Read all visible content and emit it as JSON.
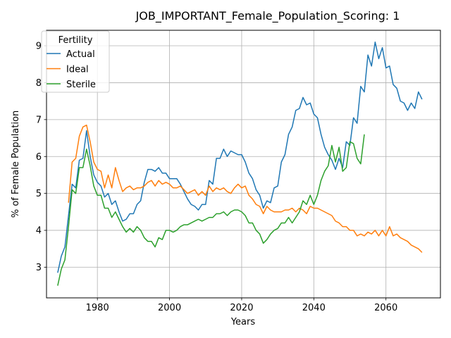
{
  "chart_data": {
    "type": "line",
    "title": "JOB_IMPORTANT_Female_Population_Scoring: 1",
    "xlabel": "Years",
    "ylabel": "% of Female Population",
    "xlim": [
      1965.9,
      2075.1
    ],
    "ylim": [
      2.17,
      9.42
    ],
    "xticks": [
      1980,
      2000,
      2020,
      2040,
      2060
    ],
    "yticks": [
      3,
      4,
      5,
      6,
      7,
      8,
      9
    ],
    "grid": true,
    "legend": {
      "title": "Fertility",
      "placement": "top-left"
    },
    "series": [
      {
        "name": "Actual",
        "color": "#1f77b4",
        "x": [
          1969,
          1970,
          1971,
          1972,
          1973,
          1974,
          1975,
          1976,
          1977,
          1978,
          1979,
          1980,
          1981,
          1982,
          1983,
          1984,
          1985,
          1986,
          1987,
          1988,
          1989,
          1990,
          1991,
          1992,
          1993,
          1994,
          1995,
          1996,
          1997,
          1998,
          1999,
          2000,
          2001,
          2002,
          2003,
          2004,
          2005,
          2006,
          2007,
          2008,
          2009,
          2010,
          2011,
          2012,
          2013,
          2014,
          2015,
          2016,
          2017,
          2018,
          2019,
          2020,
          2021,
          2022,
          2023,
          2024,
          2025,
          2026,
          2027,
          2028,
          2029,
          2030,
          2031,
          2032,
          2033,
          2034,
          2035,
          2036,
          2037,
          2038,
          2039,
          2040,
          2041,
          2042,
          2043,
          2044,
          2045,
          2046,
          2047,
          2048,
          2049,
          2050,
          2051,
          2052,
          2053,
          2054,
          2055,
          2056,
          2057,
          2058,
          2059,
          2060,
          2061,
          2062,
          2063,
          2064,
          2065,
          2066,
          2067,
          2068,
          2069,
          2070
        ],
        "values": [
          2.85,
          3.3,
          3.55,
          4.4,
          5.25,
          5.15,
          5.9,
          5.95,
          6.7,
          6.0,
          5.5,
          5.3,
          5.2,
          4.9,
          5.0,
          4.7,
          4.8,
          4.5,
          4.25,
          4.3,
          4.45,
          4.45,
          4.7,
          4.8,
          5.3,
          5.65,
          5.65,
          5.6,
          5.7,
          5.55,
          5.55,
          5.4,
          5.4,
          5.4,
          5.25,
          5.05,
          4.85,
          4.7,
          4.65,
          4.55,
          4.7,
          4.7,
          5.35,
          5.25,
          5.95,
          5.95,
          6.2,
          6.0,
          6.15,
          6.1,
          6.05,
          6.05,
          5.85,
          5.55,
          5.4,
          5.1,
          4.95,
          4.6,
          4.8,
          4.75,
          5.15,
          5.2,
          5.85,
          6.05,
          6.6,
          6.8,
          7.25,
          7.3,
          7.6,
          7.4,
          7.45,
          7.15,
          7.05,
          6.6,
          6.25,
          6.05,
          5.9,
          5.65,
          5.95,
          5.7,
          6.4,
          6.3,
          7.05,
          6.9,
          7.9,
          7.75,
          8.75,
          8.45,
          9.1,
          8.65,
          8.95,
          8.4,
          8.45,
          7.95,
          7.85,
          7.5,
          7.45,
          7.25,
          7.45,
          7.3,
          7.75,
          7.55
        ]
      },
      {
        "name": "Ideal",
        "color": "#ff7f0e",
        "x": [
          1972,
          1973,
          1974,
          1975,
          1976,
          1977,
          1978,
          1979,
          1980,
          1981,
          1982,
          1983,
          1984,
          1985,
          1986,
          1987,
          1988,
          1989,
          1990,
          1991,
          1992,
          1993,
          1994,
          1995,
          1996,
          1997,
          1998,
          1999,
          2000,
          2001,
          2002,
          2003,
          2004,
          2005,
          2006,
          2007,
          2008,
          2009,
          2010,
          2011,
          2012,
          2013,
          2014,
          2015,
          2016,
          2017,
          2018,
          2019,
          2020,
          2021,
          2022,
          2023,
          2024,
          2025,
          2026,
          2027,
          2028,
          2029,
          2030,
          2031,
          2032,
          2033,
          2034,
          2035,
          2036,
          2037,
          2038,
          2039,
          2040,
          2041,
          2042,
          2043,
          2044,
          2045,
          2046,
          2047,
          2048,
          2049,
          2050,
          2051,
          2052,
          2053,
          2054,
          2055,
          2056,
          2057,
          2058,
          2059,
          2060,
          2061,
          2062,
          2063,
          2064,
          2065,
          2066,
          2067,
          2068,
          2069,
          2070
        ],
        "values": [
          4.75,
          5.85,
          5.95,
          6.55,
          6.8,
          6.85,
          6.4,
          5.85,
          5.65,
          5.6,
          5.15,
          5.5,
          5.15,
          5.7,
          5.35,
          5.05,
          5.15,
          5.2,
          5.1,
          5.15,
          5.15,
          5.2,
          5.3,
          5.35,
          5.2,
          5.35,
          5.25,
          5.3,
          5.25,
          5.15,
          5.15,
          5.2,
          5.1,
          5.0,
          5.05,
          5.1,
          4.95,
          5.05,
          4.95,
          5.2,
          5.05,
          5.15,
          5.1,
          5.15,
          5.05,
          5.0,
          5.15,
          5.25,
          5.15,
          5.2,
          4.95,
          4.85,
          4.7,
          4.65,
          4.45,
          4.65,
          4.55,
          4.5,
          4.5,
          4.5,
          4.55,
          4.55,
          4.6,
          4.5,
          4.6,
          4.55,
          4.45,
          4.65,
          4.6,
          4.6,
          4.55,
          4.5,
          4.45,
          4.4,
          4.25,
          4.2,
          4.1,
          4.1,
          4.0,
          4.0,
          3.85,
          3.9,
          3.85,
          3.95,
          3.9,
          4.0,
          3.85,
          4.0,
          3.85,
          4.1,
          3.85,
          3.9,
          3.8,
          3.75,
          3.7,
          3.6,
          3.55,
          3.5,
          3.4
        ]
      },
      {
        "name": "Sterile",
        "color": "#2ca02c",
        "x": [
          1969,
          1970,
          1971,
          1972,
          1973,
          1974,
          1975,
          1976,
          1977,
          1978,
          1979,
          1980,
          1981,
          1982,
          1983,
          1984,
          1985,
          1986,
          1987,
          1988,
          1989,
          1990,
          1991,
          1992,
          1993,
          1994,
          1995,
          1996,
          1997,
          1998,
          1999,
          2000,
          2001,
          2002,
          2003,
          2004,
          2005,
          2006,
          2007,
          2008,
          2009,
          2010,
          2011,
          2012,
          2013,
          2014,
          2015,
          2016,
          2017,
          2018,
          2019,
          2020,
          2021,
          2022,
          2023,
          2024,
          2025,
          2026,
          2027,
          2028,
          2029,
          2030,
          2031,
          2032,
          2033,
          2034,
          2035,
          2036,
          2037,
          2038,
          2039,
          2040,
          2041,
          2042,
          2043,
          2044,
          2045,
          2046,
          2047,
          2048,
          2049,
          2050,
          2051,
          2052,
          2053,
          2054
        ],
        "values": [
          2.5,
          2.95,
          3.2,
          4.1,
          5.1,
          5.0,
          5.7,
          5.7,
          6.2,
          5.75,
          5.2,
          4.95,
          4.95,
          4.6,
          4.6,
          4.35,
          4.5,
          4.3,
          4.1,
          3.95,
          4.05,
          3.95,
          4.1,
          4.0,
          3.8,
          3.7,
          3.7,
          3.55,
          3.8,
          3.75,
          4.0,
          4.0,
          3.95,
          4.0,
          4.1,
          4.15,
          4.15,
          4.2,
          4.25,
          4.3,
          4.25,
          4.3,
          4.35,
          4.35,
          4.45,
          4.45,
          4.5,
          4.4,
          4.5,
          4.55,
          4.55,
          4.5,
          4.4,
          4.2,
          4.2,
          4.0,
          3.9,
          3.65,
          3.75,
          3.9,
          4.0,
          4.05,
          4.2,
          4.2,
          4.35,
          4.2,
          4.35,
          4.5,
          4.8,
          4.7,
          4.95,
          4.7,
          4.95,
          5.35,
          5.6,
          5.75,
          6.3,
          5.85,
          6.25,
          5.6,
          5.7,
          6.4,
          6.35,
          5.95,
          5.8,
          6.6
        ]
      }
    ]
  }
}
